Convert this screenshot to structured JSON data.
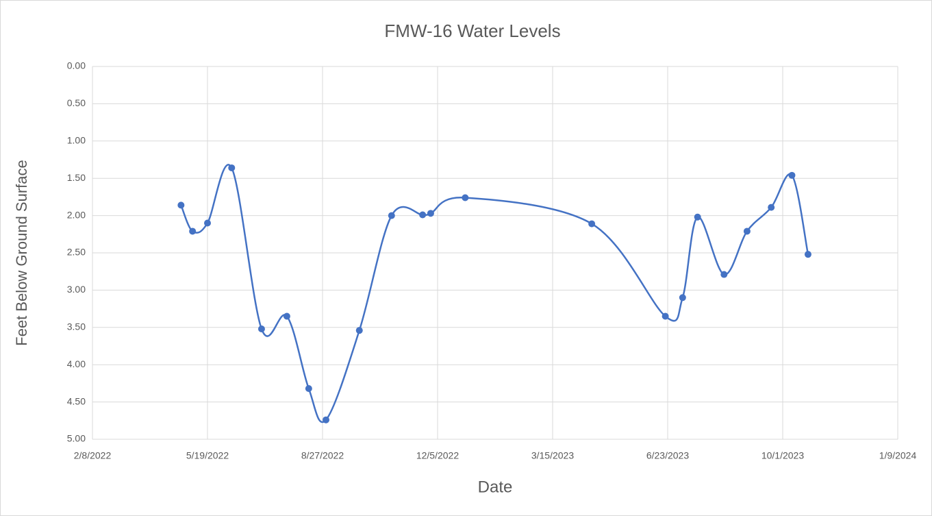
{
  "chart_data": {
    "type": "line",
    "title": "FMW-16 Water Levels",
    "x_label": "Date",
    "y_label": "Feet Below Ground Surface",
    "x": [
      "4/26/2022",
      "5/6/2022",
      "5/19/2022",
      "6/9/2022",
      "7/5/2022",
      "7/27/2022",
      "8/15/2022",
      "8/30/2022",
      "9/28/2022",
      "10/26/2022",
      "11/22/2022",
      "11/29/2022",
      "12/29/2022",
      "4/18/2023",
      "6/21/2023",
      "7/6/2023",
      "7/19/2023",
      "8/11/2023",
      "8/31/2023",
      "9/21/2023",
      "10/9/2023",
      "10/23/2023"
    ],
    "series": [
      {
        "name": "FMW-16",
        "color": "#4472c4",
        "values": [
          1.86,
          2.21,
          2.1,
          1.36,
          3.52,
          3.35,
          4.32,
          4.74,
          3.54,
          2.0,
          1.99,
          1.97,
          1.76,
          2.11,
          3.35,
          3.1,
          2.02,
          2.79,
          2.21,
          1.89,
          1.46,
          2.52
        ]
      }
    ],
    "smooth": true,
    "xlim": [
      "2/8/2022",
      "1/9/2024"
    ],
    "xticks": [
      "2/8/2022",
      "5/19/2022",
      "8/27/2022",
      "12/5/2022",
      "3/15/2023",
      "6/23/2023",
      "10/1/2023",
      "1/9/2024"
    ],
    "ylim": [
      0,
      5
    ],
    "y_reversed": true,
    "yticks": [
      {
        "value": 0,
        "label": "0.00"
      },
      {
        "value": 0.5,
        "label": "0.50"
      },
      {
        "value": 1,
        "label": "1.00"
      },
      {
        "value": 1.5,
        "label": "1.50"
      },
      {
        "value": 2,
        "label": "2.00"
      },
      {
        "value": 2.5,
        "label": "2.50"
      },
      {
        "value": 3,
        "label": "3.00"
      },
      {
        "value": 3.5,
        "label": "3.50"
      },
      {
        "value": 4,
        "label": "4.00"
      },
      {
        "value": 4.5,
        "label": "4.50"
      },
      {
        "value": 5,
        "label": "5.00"
      }
    ],
    "grid": true
  }
}
